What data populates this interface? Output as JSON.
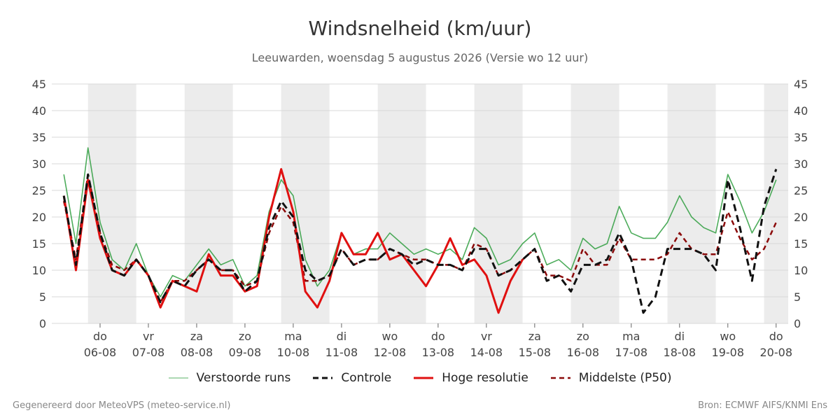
{
  "title": "Windsnelheid (km/uur)",
  "subtitle": "Leeuwarden, woensdag  5 augustus 2026 (Versie wo 12 uur)",
  "footer": {
    "left": "Gegenereerd door MeteoVPS (meteo-service.nl)",
    "right": "Bron: ECMWF AIFS/KNMI Ens"
  },
  "colors": {
    "ensemble": "#2e9e3e",
    "control": "#111111",
    "high_res": "#e01010",
    "median": "#8b0a0a",
    "weekend_band": "#ececec",
    "grid": "#d9d9d9"
  },
  "legend": [
    {
      "label": "Verstoorde runs",
      "style": "thin-green"
    },
    {
      "label": "Controle",
      "style": "dashed-black"
    },
    {
      "label": "Hoge resolutie",
      "style": "solid-red"
    },
    {
      "label": "Middelste (P50)",
      "style": "dashed-darkred"
    }
  ],
  "chart_data": {
    "type": "line",
    "x_axis": {
      "unit": "days from 05-08 00:00",
      "range": [
        -0.25,
        15.0
      ],
      "ticks": [
        {
          "x": 0.75,
          "day": "do",
          "date": "06-08"
        },
        {
          "x": 1.75,
          "day": "vr",
          "date": "07-08"
        },
        {
          "x": 2.75,
          "day": "za",
          "date": "08-08"
        },
        {
          "x": 3.75,
          "day": "zo",
          "date": "09-08"
        },
        {
          "x": 4.75,
          "day": "ma",
          "date": "10-08"
        },
        {
          "x": 5.75,
          "day": "di",
          "date": "11-08"
        },
        {
          "x": 6.75,
          "day": "wo",
          "date": "12-08"
        },
        {
          "x": 7.75,
          "day": "do",
          "date": "13-08"
        },
        {
          "x": 8.75,
          "day": "vr",
          "date": "14-08"
        },
        {
          "x": 9.75,
          "day": "za",
          "date": "15-08"
        },
        {
          "x": 10.75,
          "day": "zo",
          "date": "16-08"
        },
        {
          "x": 11.75,
          "day": "ma",
          "date": "17-08"
        },
        {
          "x": 12.75,
          "day": "di",
          "date": "18-08"
        },
        {
          "x": 13.75,
          "day": "wo",
          "date": "19-08"
        },
        {
          "x": 14.75,
          "day": "do",
          "date": "20-08"
        }
      ],
      "shaded_bands": [
        [
          0.5,
          1.5
        ],
        [
          2.5,
          3.5
        ],
        [
          4.5,
          5.5
        ],
        [
          6.5,
          7.5
        ],
        [
          8.5,
          9.5
        ],
        [
          10.5,
          11.5
        ],
        [
          12.5,
          13.5
        ],
        [
          14.5,
          15.0
        ]
      ]
    },
    "y_axis": {
      "range": [
        0,
        45
      ],
      "ticks": [
        0,
        5,
        10,
        15,
        20,
        25,
        30,
        35,
        40,
        45
      ],
      "both_sides": true
    },
    "grid": "horizontal",
    "time_x": [
      0,
      0.25,
      0.5,
      0.75,
      1,
      1.25,
      1.5,
      1.75,
      2,
      2.25,
      2.5,
      2.75,
      3,
      3.25,
      3.5,
      3.75,
      4,
      4.25,
      4.5,
      4.75,
      5,
      5.25,
      5.5,
      5.75,
      6,
      6.25,
      6.5,
      6.75,
      7,
      7.25,
      7.5,
      7.75,
      8,
      8.25,
      8.5,
      8.75,
      9,
      9.25,
      9.5,
      9.75,
      10,
      10.25,
      10.5,
      10.75,
      11,
      11.25,
      11.5,
      11.75,
      12,
      12.25,
      12.5,
      12.75,
      13,
      13.25,
      13.5,
      13.75,
      14,
      14.25,
      14.5,
      14.75,
      15
    ],
    "series": [
      {
        "name": "Controle",
        "style": "dashed-black",
        "values": [
          24,
          11,
          28,
          17,
          10,
          9,
          12,
          9,
          4,
          8,
          7,
          10,
          12,
          10,
          10,
          6,
          8,
          18,
          23,
          20,
          10,
          8,
          9,
          14,
          11,
          12,
          12,
          14,
          13,
          11,
          12,
          11,
          11,
          10,
          14,
          14,
          9,
          10,
          12,
          14,
          8,
          9,
          6,
          11,
          11,
          12,
          17,
          12,
          2,
          5,
          14,
          14,
          14,
          13,
          10,
          27,
          18,
          8,
          22,
          29,
          null
        ]
      },
      {
        "name": "Hoge resolutie",
        "style": "solid-red",
        "values": [
          24,
          10,
          27,
          16,
          10,
          9,
          12,
          9,
          3,
          8,
          7,
          6,
          13,
          9,
          9,
          6,
          7,
          20,
          29,
          21,
          6,
          3,
          8,
          17,
          13,
          13,
          17,
          12,
          13,
          10,
          7,
          11,
          16,
          11,
          12,
          9,
          2,
          8,
          12,
          null,
          null,
          null,
          null,
          null,
          null,
          null,
          null,
          null,
          null,
          null,
          null,
          null,
          null,
          null,
          null,
          null,
          null,
          null,
          null,
          null,
          null
        ]
      },
      {
        "name": "Middelste (P50)",
        "style": "dashed-darkred",
        "values": [
          23,
          12,
          28,
          17,
          11,
          10,
          12,
          9,
          4,
          8,
          8,
          10,
          12,
          10,
          10,
          7,
          8,
          17,
          22,
          19,
          8,
          8,
          9,
          14,
          11,
          12,
          12,
          14,
          13,
          12,
          12,
          11,
          11,
          10,
          15,
          14,
          9,
          10,
          12,
          14,
          9,
          9,
          8,
          14,
          11,
          11,
          16,
          12,
          12,
          12,
          13,
          17,
          14,
          13,
          13,
          21,
          16,
          12,
          14,
          19,
          null
        ]
      },
      {
        "name": "Verstoorde runs",
        "style": "thin-green",
        "values": [
          28,
          15,
          33,
          19,
          12,
          10,
          15,
          9,
          5,
          9,
          8,
          11,
          14,
          11,
          12,
          7,
          9,
          21,
          27,
          24,
          12,
          7,
          10,
          17,
          13,
          14,
          14,
          17,
          15,
          13,
          14,
          13,
          14,
          12,
          18,
          16,
          11,
          12,
          15,
          17,
          11,
          12,
          10,
          16,
          14,
          15,
          22,
          17,
          16,
          16,
          19,
          24,
          20,
          18,
          17,
          28,
          23,
          17,
          21,
          27,
          null
        ]
      }
    ]
  }
}
